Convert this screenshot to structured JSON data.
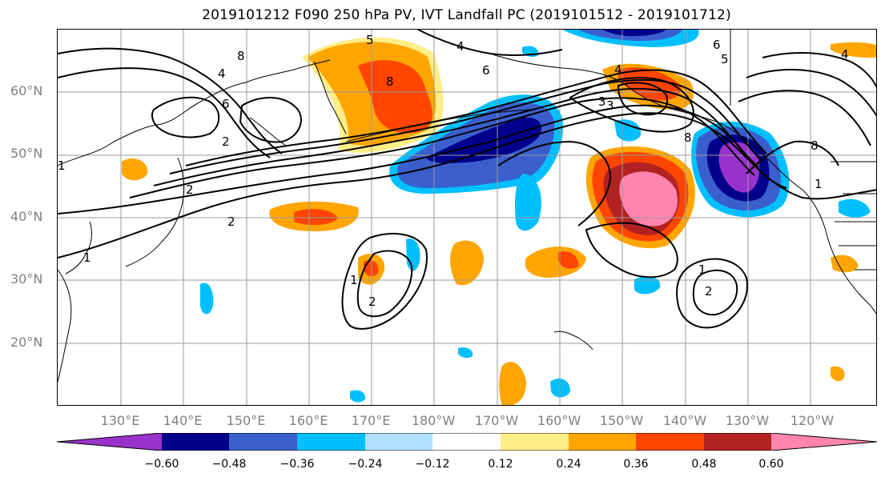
{
  "title": "2019101212 F090 250 hPa PV, IVT Landfall PC (2019101512 - 2019101712)",
  "lat_labels": [
    "60°N",
    "50°N",
    "40°N",
    "30°N",
    "20°N"
  ],
  "lon_labels": [
    "130°E",
    "140°E",
    "150°E",
    "160°E",
    "170°E",
    "180°W",
    "170°W",
    "160°W",
    "150°W",
    "140°W",
    "130°W",
    "120°W"
  ],
  "contour_labels": [
    "8",
    "6",
    "5",
    "4",
    "6",
    "4",
    "8",
    "6",
    "5",
    "4",
    "2",
    "3",
    "8",
    "1",
    "2",
    "2",
    "1",
    "2",
    "1",
    "8",
    "1",
    "3",
    "2",
    "1",
    "4"
  ],
  "colorbar": {
    "ticks": [
      "−0.60",
      "−0.48",
      "−0.36",
      "−0.24",
      "−0.12",
      "0.12",
      "0.24",
      "0.36",
      "0.48",
      "0.60"
    ],
    "colors": [
      "#9932cc",
      "#00008b",
      "#3a5fcd",
      "#00bfff",
      "#b0e0ff",
      "#ffffff",
      "#ffee88",
      "#ffa500",
      "#ff4500",
      "#b22222",
      "#ff85b0"
    ]
  },
  "gridline_color": "#9a9a9a"
}
